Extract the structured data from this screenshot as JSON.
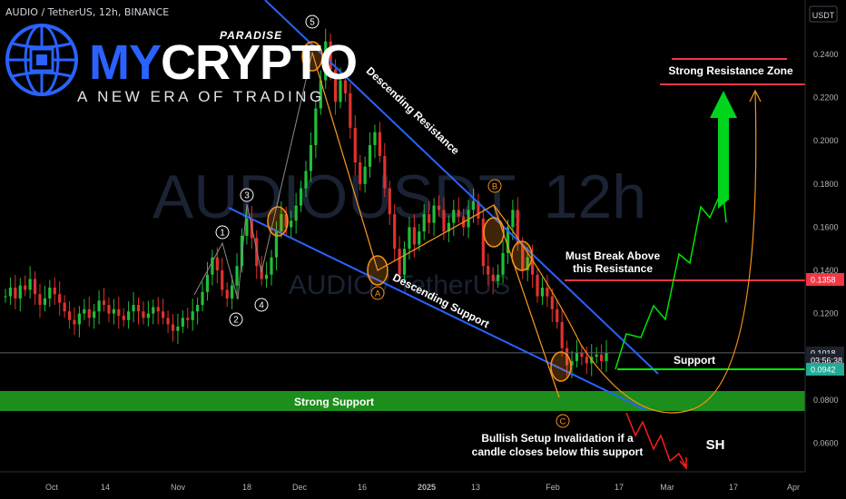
{
  "header": {
    "symbol": "AUDIO / TetherUS, 12h, BINANCE"
  },
  "branding": {
    "name_part1": "MY",
    "name_part2": "CRYPTO",
    "tagline_top": "PARADISE",
    "slogan": "A NEW ERA OF TRADING"
  },
  "watermark": {
    "line1": "AUDIOUSDT, 12h",
    "line2": "AUDIO / TetherUS"
  },
  "chart_data": {
    "type": "candlestick",
    "symbol": "AUDIOUSDT",
    "interval": "12h",
    "exchange": "BINANCE",
    "currency": "USDT",
    "y_ticks": [
      "0.2400",
      "0.2200",
      "0.2000",
      "0.1800",
      "0.1600",
      "0.1400",
      "0.1200",
      "0.0800",
      "0.0600"
    ],
    "y_tick_values": [
      0.24,
      0.22,
      0.2,
      0.18,
      0.16,
      0.14,
      0.12,
      0.08,
      0.06
    ],
    "ylim": [
      0.045,
      0.265
    ],
    "x_ticks": [
      "Oct",
      "14",
      "Nov",
      "18",
      "Dec",
      "16",
      "2025",
      "13",
      "Feb",
      "17",
      "Mar",
      "17",
      "Apr"
    ],
    "price_labels": [
      {
        "text": "0.1358",
        "value": 0.1358,
        "color": "#f23645"
      },
      {
        "text": "0.1018",
        "value": 0.1018,
        "color": "#d1d4dc"
      },
      {
        "text": "03:56:38",
        "value": 0.0985,
        "color": "#d1d4dc"
      },
      {
        "text": "0.0942",
        "value": 0.0942,
        "color": "#22ab94"
      }
    ],
    "price_series": [
      0.128,
      0.132,
      0.127,
      0.133,
      0.131,
      0.136,
      0.129,
      0.124,
      0.127,
      0.132,
      0.129,
      0.125,
      0.121,
      0.117,
      0.115,
      0.12,
      0.122,
      0.118,
      0.121,
      0.126,
      0.124,
      0.12,
      0.122,
      0.119,
      0.117,
      0.121,
      0.124,
      0.121,
      0.118,
      0.12,
      0.123,
      0.121,
      0.118,
      0.115,
      0.112,
      0.114,
      0.118,
      0.117,
      0.121,
      0.124,
      0.13,
      0.138,
      0.146,
      0.14,
      0.131,
      0.127,
      0.133,
      0.142,
      0.156,
      0.164,
      0.155,
      0.142,
      0.136,
      0.138,
      0.146,
      0.158,
      0.166,
      0.16,
      0.163,
      0.17,
      0.178,
      0.186,
      0.198,
      0.215,
      0.228,
      0.246,
      0.233,
      0.218,
      0.228,
      0.222,
      0.206,
      0.19,
      0.18,
      0.188,
      0.198,
      0.204,
      0.193,
      0.178,
      0.166,
      0.15,
      0.138,
      0.15,
      0.16,
      0.152,
      0.158,
      0.166,
      0.162,
      0.17,
      0.168,
      0.158,
      0.162,
      0.168,
      0.165,
      0.16,
      0.168,
      0.172,
      0.164,
      0.142,
      0.138,
      0.135,
      0.138,
      0.148,
      0.16,
      0.168,
      0.152,
      0.14,
      0.146,
      0.138,
      0.128,
      0.132,
      0.128,
      0.122,
      0.116,
      0.104,
      0.096,
      0.098,
      0.102,
      0.1,
      0.097,
      0.1,
      0.101,
      0.098,
      0.1018
    ],
    "annotations": {
      "texts": [
        "Descending Resistance",
        "Descending Support",
        "Strong Resistance Zone",
        "Must Break Above",
        "this Resistance",
        "Support",
        "Strong Support",
        "Bullish Setup Invalidation if a",
        "candle closes below this support",
        "SH"
      ],
      "wave_labels": [
        "1",
        "2",
        "3",
        "4",
        "5",
        "A",
        "B",
        "C"
      ],
      "colors": {
        "resistance_line": "#2962ff",
        "support_zone": "#1b8e1b",
        "red_level": "#f23645",
        "green_projection": "#00e600",
        "orange_path": "#f7931a",
        "up_arrow": "#00d41c"
      }
    }
  }
}
